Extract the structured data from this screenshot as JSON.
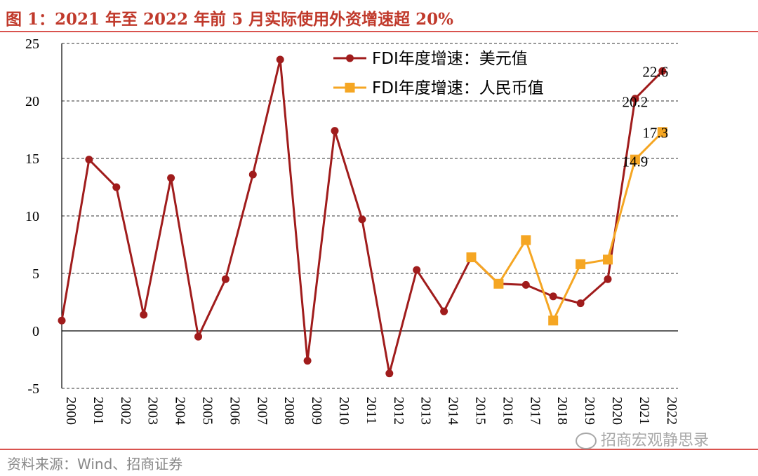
{
  "header": {
    "title": "图 1：2021 年至 2022 年前 5 月实际使用外资增速超 20%"
  },
  "footer": {
    "source": "资料来源：Wind、招商证券",
    "watermark": "招商宏观静思录"
  },
  "chart_data": {
    "type": "line",
    "title": "图 1：2021 年至 2022 年前 5 月实际使用外资增速超 20%",
    "xlabel": "",
    "ylabel": "",
    "ylim": [
      -5,
      25
    ],
    "yticks": [
      25,
      20,
      15,
      10,
      5,
      0,
      -5
    ],
    "ytick_labels": [
      "25",
      "20",
      "15",
      "10",
      "5",
      "0",
      "-5"
    ],
    "grid": "horizontal-dashed",
    "legend_position": "top-right",
    "categories": [
      "2000",
      "2001",
      "2002",
      "2003",
      "2004",
      "2005",
      "2006",
      "2007",
      "2008",
      "2009",
      "2010",
      "2011",
      "2012",
      "2013",
      "2014",
      "2015",
      "2016",
      "2017",
      "2018",
      "2019",
      "2020",
      "2021",
      "2022"
    ],
    "category_labels": [
      "2000",
      "2001",
      "2002",
      "2003",
      "2004",
      "2005",
      "2006",
      "2007",
      "2008",
      "2009",
      "2010",
      "2011",
      "2012",
      "2013",
      "2014",
      "2015",
      "2016",
      "2017",
      "2018",
      "2019",
      "2020",
      "2021",
      "2022"
    ],
    "series": [
      {
        "name": "FDI年度增速：美元值",
        "color": "#a01c1c",
        "marker": "circle",
        "values": [
          0.9,
          14.9,
          12.5,
          1.4,
          13.3,
          -0.5,
          4.5,
          13.6,
          23.6,
          -2.6,
          17.4,
          9.7,
          -3.7,
          5.3,
          1.7,
          6.4,
          4.1,
          4.0,
          3.0,
          2.4,
          4.5,
          20.2,
          22.6
        ],
        "annotations": [
          {
            "index": 21,
            "label": "20.2"
          },
          {
            "index": 22,
            "label": "22.6"
          }
        ]
      },
      {
        "name": "FDI年度增速：人民币值",
        "color": "#f5a623",
        "marker": "square",
        "values": [
          null,
          null,
          null,
          null,
          null,
          null,
          null,
          null,
          null,
          null,
          null,
          null,
          null,
          null,
          null,
          6.4,
          4.1,
          7.9,
          0.9,
          5.8,
          6.2,
          14.9,
          17.3
        ],
        "annotations": [
          {
            "index": 21,
            "label": "14.9"
          },
          {
            "index": 22,
            "label": "17.3"
          }
        ]
      }
    ]
  }
}
